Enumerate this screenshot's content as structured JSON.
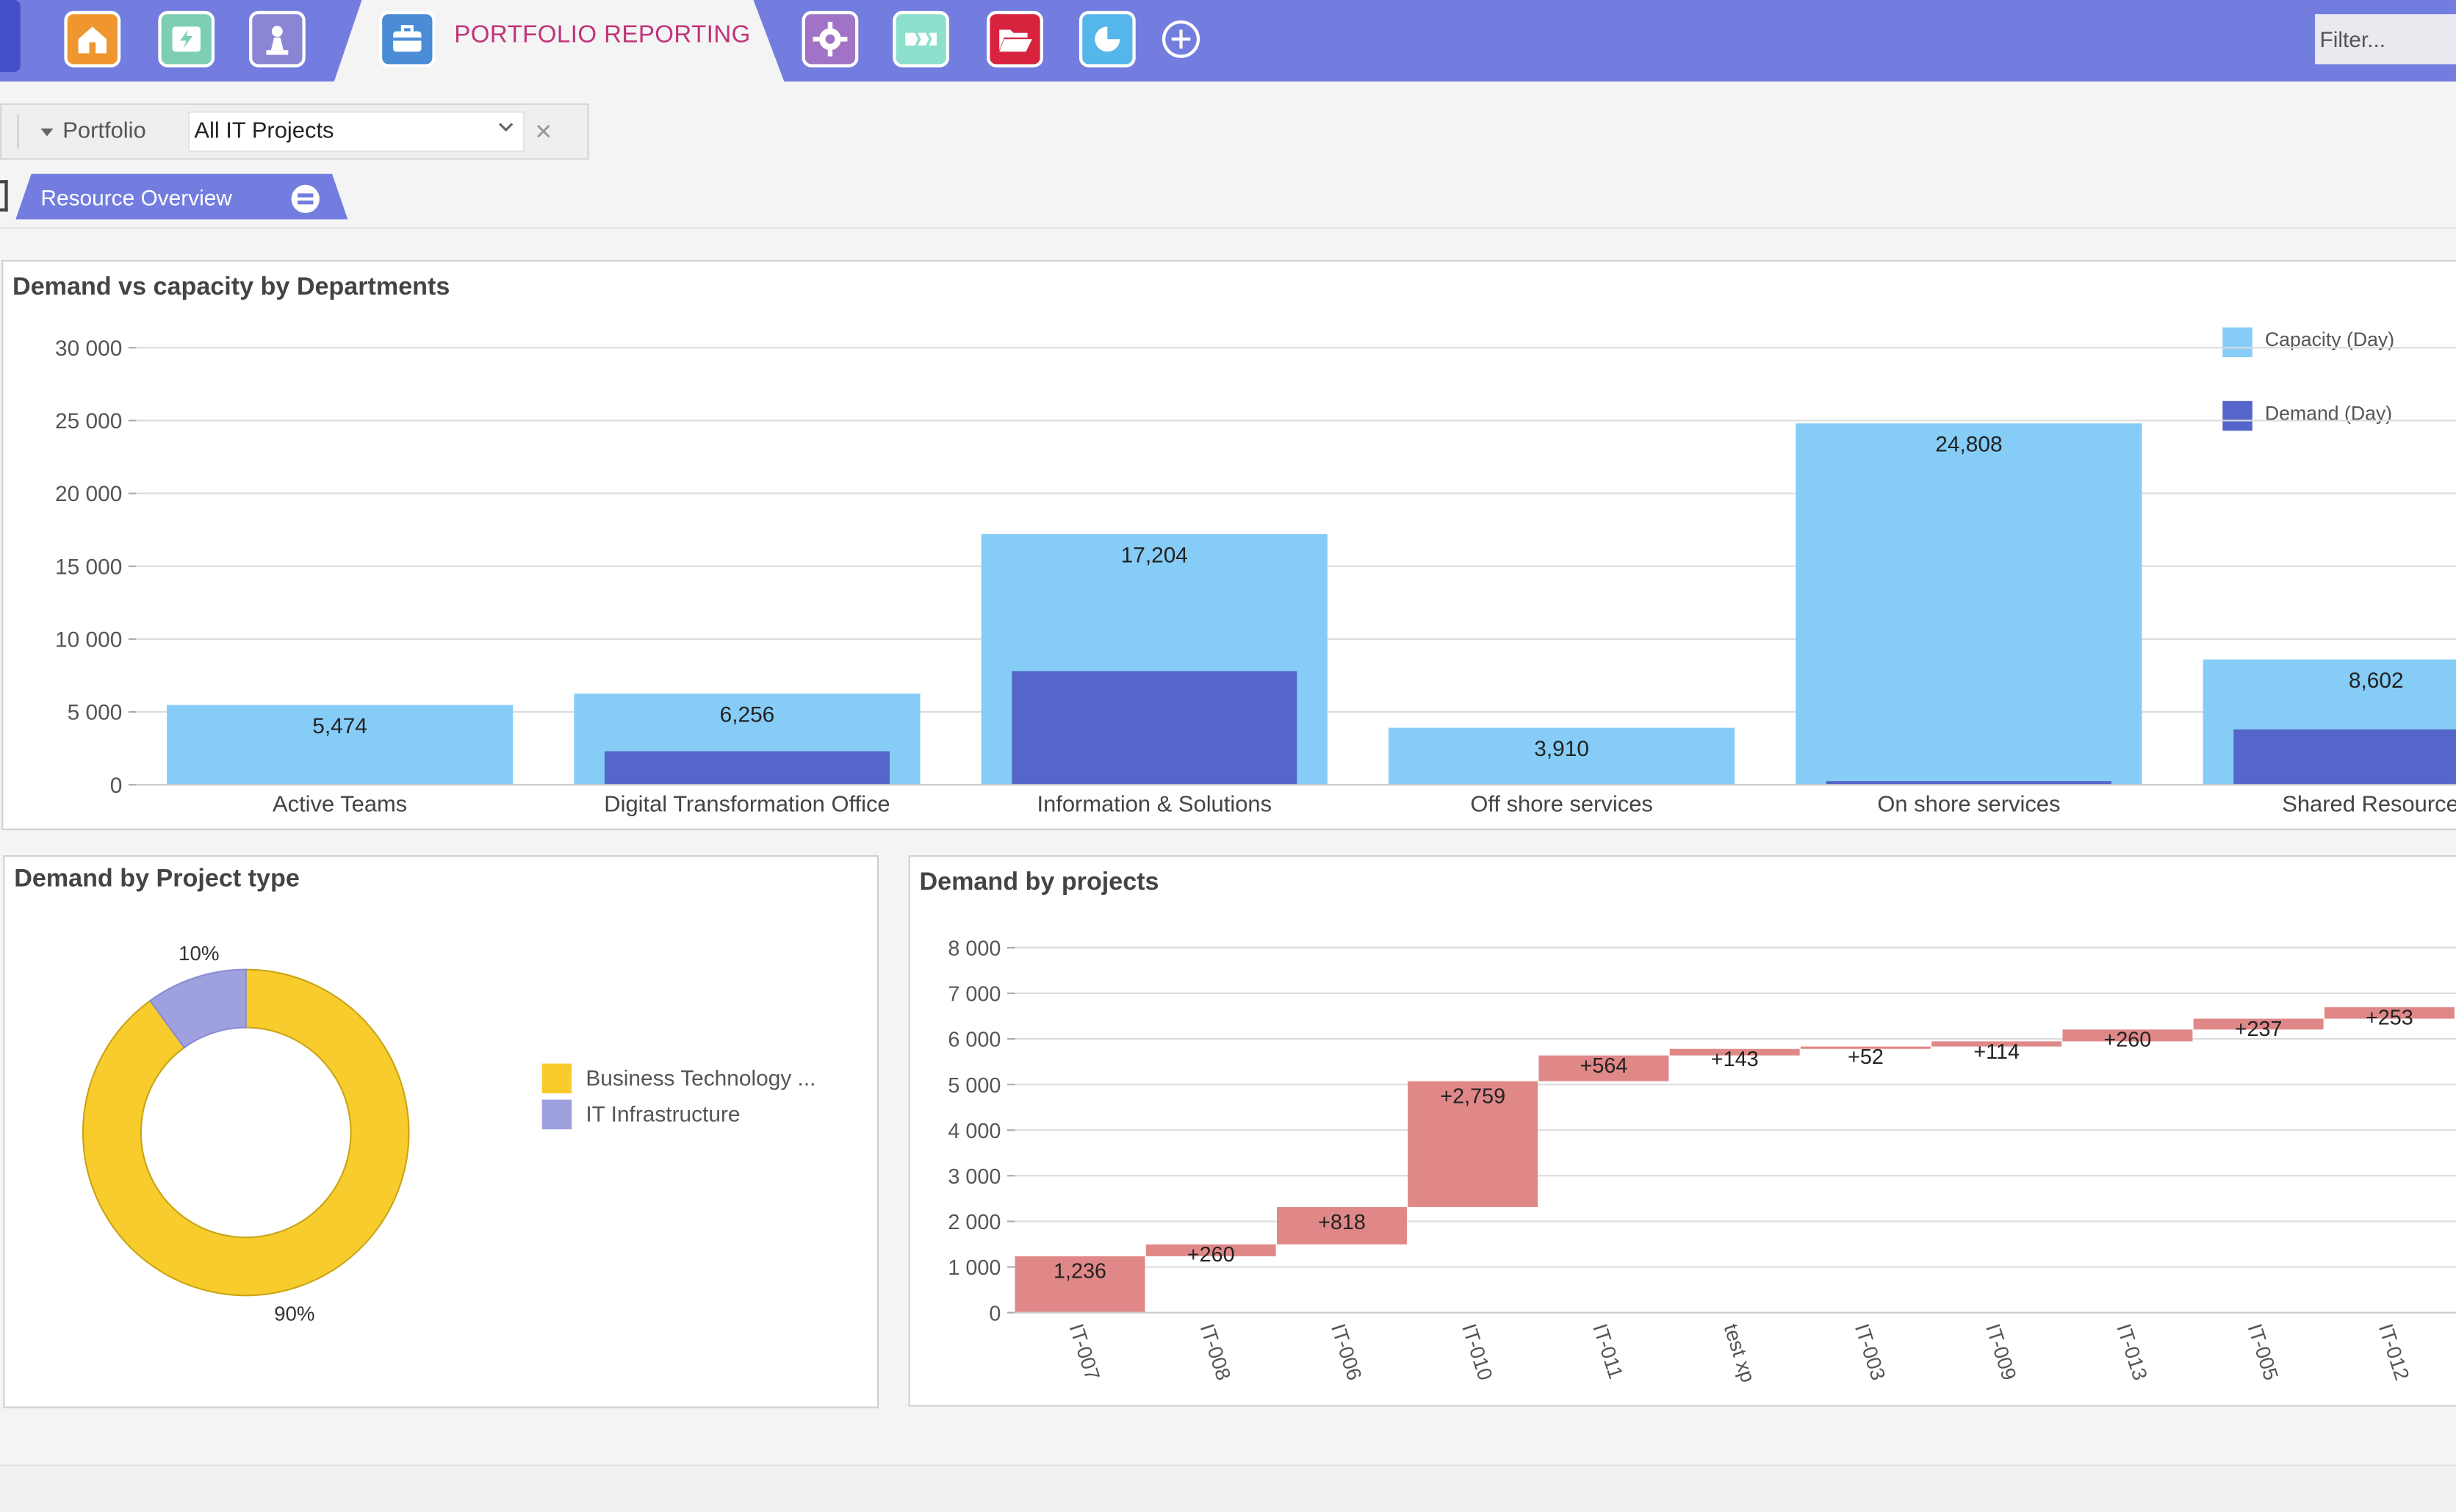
{
  "header": {
    "title": "PORTFOLIO REPORTING",
    "filter_placeholder": "Filter...",
    "icons": [
      "home-icon",
      "energy-folder-icon",
      "chess-pawn-icon",
      "briefcase-icon",
      "gear-icon",
      "timeline-icon",
      "folder-open-icon",
      "pie-chart-icon",
      "add-circle-icon"
    ]
  },
  "filter_bar": {
    "portfolio_label": "Portfolio",
    "portfolio_value": "All IT Projects"
  },
  "view_tab": {
    "label": "Resource Overview"
  },
  "colors": {
    "topbar": "#727ddf",
    "capacity": "#85cdf7",
    "demand": "#5565c9",
    "donut_business": "#f8cc2c",
    "donut_infra": "#9ea1dd",
    "waterfall": "#e08888",
    "title_accent": "#c1337a"
  },
  "chart_data": [
    {
      "type": "bar",
      "title": "Demand vs capacity by Departments",
      "categories": [
        "Active Teams",
        "Digital Transformation Office",
        "Information & Solutions",
        "Off shore services",
        "On shore services",
        "Shared Resources"
      ],
      "series": [
        {
          "name": "Capacity (Day)",
          "values": [
            5474,
            6256,
            17204,
            3910,
            24808,
            8602
          ],
          "labels": [
            "5,474",
            "6,256",
            "17,204",
            "3,910",
            "24,808",
            "8,602"
          ]
        },
        {
          "name": "Demand (Day)",
          "values": [
            0,
            2300,
            7800,
            0,
            250,
            3800
          ]
        }
      ],
      "yticks": [
        "0",
        "5 000",
        "10 000",
        "15 000",
        "20 000",
        "25 000",
        "30 000"
      ],
      "ylim": [
        0,
        30000
      ],
      "legend": "top-right"
    },
    {
      "type": "pie",
      "title": "Demand by Project type",
      "slices": [
        {
          "name": "Business Technology ...",
          "value": 90,
          "label": "90%"
        },
        {
          "name": "IT Infrastructure",
          "value": 10,
          "label": "10%"
        }
      ],
      "legend": "right"
    },
    {
      "type": "waterfall",
      "title": "Demand by projects",
      "categories": [
        "IT-007",
        "IT-008",
        "IT-006",
        "IT-010",
        "IT-011",
        "test xp",
        "IT-003",
        "IT-009",
        "IT-013",
        "IT-005",
        "IT-012"
      ],
      "values": [
        1236,
        260,
        818,
        2759,
        564,
        143,
        52,
        114,
        260,
        237,
        253
      ],
      "labels": [
        "1,236",
        "+260",
        "+818",
        "+2,759",
        "+564",
        "+143",
        "+52",
        "+114",
        "+260",
        "+237",
        "+253"
      ],
      "yticks": [
        "0",
        "1 000",
        "2 000",
        "3 000",
        "4 000",
        "5 000",
        "6 000",
        "7 000",
        "8 000"
      ],
      "ylim": [
        0,
        8000
      ]
    }
  ]
}
